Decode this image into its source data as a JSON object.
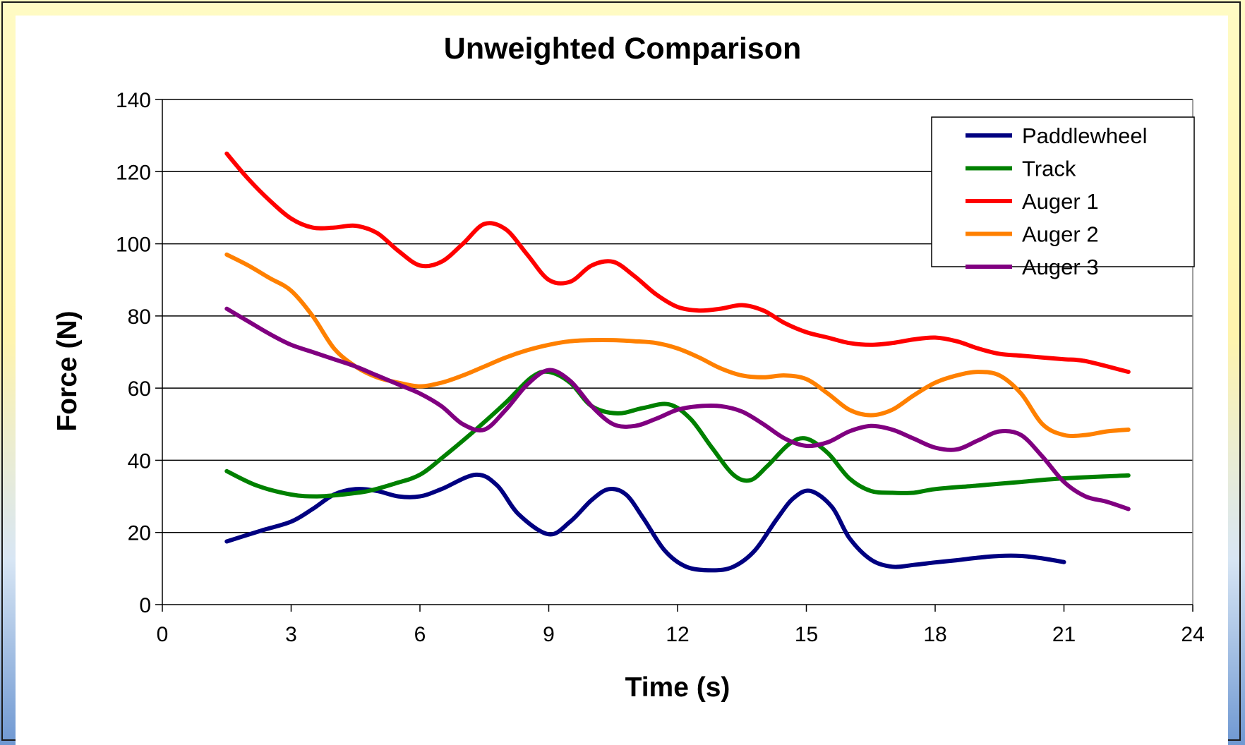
{
  "chart_data": {
    "type": "line",
    "title": "Unweighted Comparison",
    "xlabel": "Time (s)",
    "ylabel": "Force (N)",
    "xlim": [
      0,
      24
    ],
    "ylim": [
      0,
      140
    ],
    "x_ticks": [
      "0",
      "3",
      "6",
      "9",
      "12",
      "15",
      "18",
      "21",
      "24"
    ],
    "y_ticks": [
      "0",
      "20",
      "40",
      "60",
      "80",
      "100",
      "120",
      "140"
    ],
    "grid": "horizontal major gridlines",
    "legend_position": "top-right",
    "series": [
      {
        "name": "Paddlewheel",
        "color": "#000080",
        "x": [
          1.5,
          2.3,
          3,
          3.5,
          4,
          4.5,
          5,
          5.5,
          6,
          6.5,
          7.3,
          7.8,
          8.3,
          9,
          9.5,
          10,
          10.4,
          10.8,
          11.2,
          11.7,
          12.2,
          12.8,
          13.3,
          13.8,
          14.3,
          14.7,
          15.1,
          15.6,
          16,
          16.5,
          17,
          17.5,
          18,
          18.5,
          19,
          19.5,
          20,
          20.5,
          21
        ],
        "y": [
          17.5,
          20.5,
          23,
          26.5,
          30.5,
          32,
          31.5,
          30,
          30,
          32,
          36,
          33,
          25,
          19.5,
          23,
          29,
          32,
          30.5,
          24,
          15,
          10.5,
          9.5,
          10.5,
          15,
          23.5,
          29.5,
          31.5,
          27,
          18.5,
          12.5,
          10.5,
          11,
          11.7,
          12.3,
          13,
          13.5,
          13.5,
          12.8,
          11.8
        ]
      },
      {
        "name": "Track",
        "color": "#008000",
        "x": [
          1.5,
          2.2,
          3,
          3.6,
          4.2,
          4.8,
          5.4,
          6,
          6.6,
          7.3,
          8,
          8.6,
          9,
          9.5,
          10,
          10.6,
          11.2,
          11.8,
          12.3,
          12.8,
          13.3,
          13.7,
          14.1,
          14.6,
          15,
          15.5,
          16,
          16.5,
          17,
          17.5,
          18,
          19,
          20,
          21,
          22.5
        ],
        "y": [
          37,
          33,
          30.5,
          30,
          30.5,
          31.5,
          33.5,
          36,
          41.5,
          48.5,
          56,
          63,
          64.5,
          61.5,
          55,
          53,
          54.5,
          55.5,
          51.5,
          43.5,
          36,
          34.5,
          38.5,
          44.5,
          46,
          42,
          35,
          31.5,
          31,
          31,
          32,
          33,
          34,
          35,
          35.8
        ]
      },
      {
        "name": "Auger 1",
        "color": "#ff0000",
        "x": [
          1.5,
          2,
          2.5,
          3,
          3.5,
          4,
          4.5,
          5,
          5.5,
          6,
          6.5,
          7,
          7.5,
          8,
          8.5,
          9,
          9.5,
          10,
          10.5,
          11,
          11.5,
          12,
          12.5,
          13,
          13.5,
          14,
          14.5,
          15,
          15.5,
          16,
          16.5,
          17,
          17.5,
          18,
          18.5,
          19,
          19.5,
          20,
          20.5,
          21,
          21.5,
          22.5
        ],
        "y": [
          125,
          118,
          112,
          107,
          104.5,
          104.5,
          105,
          103,
          98,
          94,
          95,
          100,
          105.5,
          104,
          97,
          90,
          89.5,
          94,
          95,
          91,
          86,
          82.5,
          81.5,
          82,
          83,
          81.5,
          78,
          75.5,
          74,
          72.5,
          72,
          72.5,
          73.5,
          74,
          73,
          71,
          69.5,
          69,
          68.5,
          68,
          67.5,
          64.5
        ]
      },
      {
        "name": "Auger 2",
        "color": "#ff8000",
        "x": [
          1.5,
          2,
          2.5,
          3,
          3.5,
          4,
          4.5,
          5,
          5.5,
          6,
          6.5,
          7,
          7.5,
          8,
          8.5,
          9,
          9.5,
          10,
          10.5,
          11,
          11.5,
          12,
          12.5,
          13,
          13.5,
          14,
          14.5,
          15,
          15.5,
          16,
          16.5,
          17,
          17.5,
          18,
          18.5,
          19,
          19.5,
          20,
          20.5,
          21,
          21.5,
          22,
          22.5
        ],
        "y": [
          97,
          94,
          90.5,
          87,
          80,
          71,
          66,
          63,
          61.5,
          60.5,
          61.5,
          63.5,
          66,
          68.5,
          70.5,
          72,
          73,
          73.3,
          73.3,
          73,
          72.5,
          71,
          68.5,
          65.5,
          63.5,
          63,
          63.5,
          62.5,
          58.5,
          54,
          52.5,
          54,
          58,
          61.5,
          63.5,
          64.5,
          63.5,
          58.5,
          50,
          47,
          47,
          48,
          48.5
        ]
      },
      {
        "name": "Auger 3",
        "color": "#800080",
        "x": [
          1.5,
          2,
          2.5,
          3,
          3.5,
          4,
          4.5,
          5,
          5.5,
          6,
          6.5,
          7,
          7.5,
          8,
          8.5,
          9,
          9.5,
          10,
          10.5,
          11,
          11.5,
          12,
          12.5,
          13,
          13.5,
          14,
          14.5,
          15,
          15.5,
          16,
          16.5,
          17,
          17.5,
          18,
          18.5,
          19,
          19.5,
          20,
          20.5,
          21,
          21.5,
          22,
          22.5
        ],
        "y": [
          82,
          78.5,
          75,
          72,
          70,
          68,
          66,
          63.5,
          61,
          58.5,
          55,
          50,
          48.5,
          54,
          61,
          65,
          62,
          55,
          50,
          49.5,
          51.5,
          54,
          55,
          55,
          53.5,
          50,
          46,
          44,
          45,
          48,
          49.5,
          48.5,
          46,
          43.5,
          43,
          45.5,
          48,
          47,
          41,
          34,
          30,
          28.5,
          26.5
        ]
      }
    ]
  }
}
